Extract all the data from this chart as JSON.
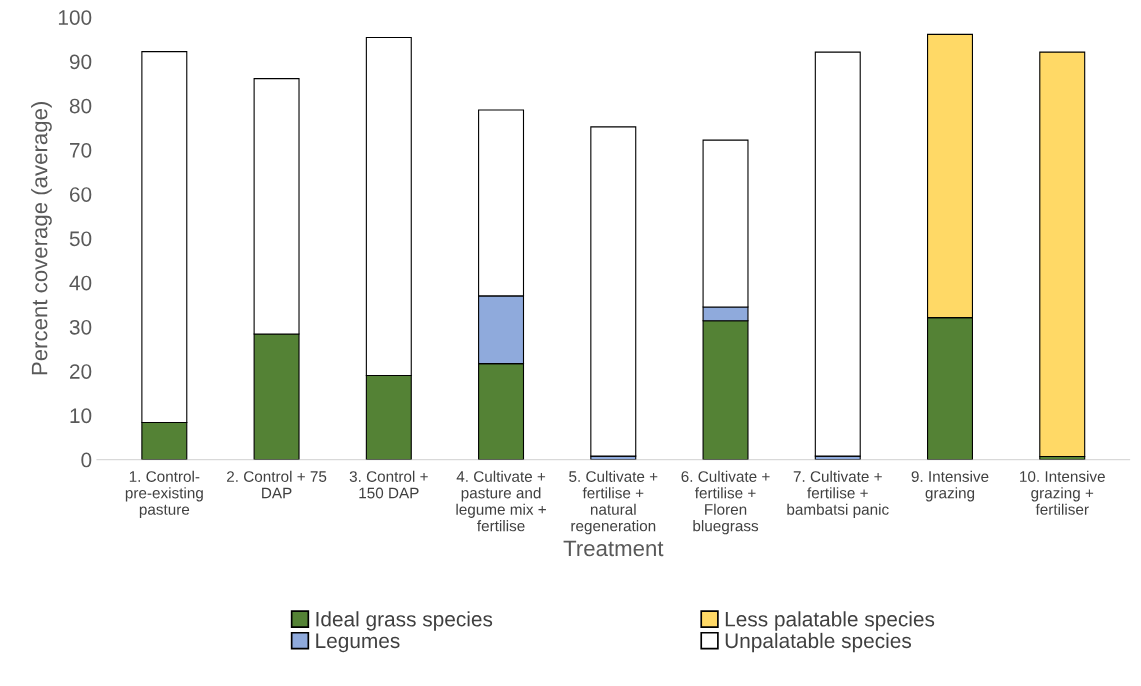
{
  "chart_data": {
    "type": "bar",
    "stacked": true,
    "xlabel": "Treatment",
    "ylabel": "Percent coverage (average)",
    "categories": [
      "1. Control-\npre-existing\npasture",
      "2. Control + 75\nDAP",
      "3. Control +\n150 DAP",
      "4. Cultivate +\npasture and\nlegume mix +\nfertilise",
      "5. Cultivate +\nfertilise +\nnatural\nregeneration",
      "6. Cultivate +\nfertilise +\nFloren\nbluegrass",
      "7. Cultivate +\nfertilise +\nbambatsi panic",
      "9. Intensive\ngrazing",
      "10. Intensive\ngrazing +\nfertiliser"
    ],
    "series": [
      {
        "name": "Ideal grass species",
        "color": "#548235",
        "values": [
          8.4,
          28.4,
          19.0,
          21.7,
          null,
          31.4,
          null,
          32.1,
          0.7
        ]
      },
      {
        "name": "Legumes",
        "color": "#8faadc",
        "values": [
          null,
          null,
          null,
          15.3,
          0.8,
          3.1,
          0.8,
          null,
          null
        ]
      },
      {
        "name": "Less palatable species",
        "color": "#ffd966",
        "values": [
          null,
          null,
          null,
          null,
          null,
          null,
          null,
          64.0,
          91.4
        ]
      },
      {
        "name": "Unpalatable species",
        "color": "#ffffff",
        "values": [
          83.8,
          57.7,
          76.4,
          42.0,
          74.4,
          37.7,
          91.3,
          null,
          null
        ]
      }
    ],
    "ylim": [
      0,
      100
    ],
    "yticks": [
      0,
      10,
      20,
      30,
      40,
      50,
      60,
      70,
      80,
      90,
      100
    ],
    "grid": false,
    "legend": "bottom"
  }
}
